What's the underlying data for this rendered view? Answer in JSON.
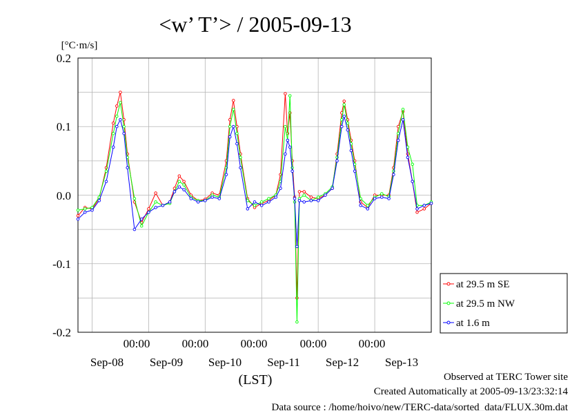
{
  "chart_data": {
    "type": "line",
    "title": "<w’ T’> / 2005-09-13",
    "ylabel": "[°C·m/s]",
    "xlabel": "(LST)",
    "ylim": [
      -0.2,
      0.2
    ],
    "y_ticks": [
      "0.2",
      "0.1",
      "0.0",
      "-0.1",
      "-0.2"
    ],
    "x_day_ticks": [
      "Sep-08",
      "Sep-09",
      "Sep-10",
      "Sep-11",
      "Sep-12",
      "Sep-13"
    ],
    "x_time_ticks": [
      "00:00",
      "00:00",
      "00:00",
      "00:00",
      "00:00"
    ],
    "x_start": "2005-09-07 18:00",
    "x_end": "2005-09-13 24:00",
    "grid": true,
    "legend_position": "lower-right outside",
    "series": [
      {
        "name": "at 29.5 m SE",
        "color": "#ff0000",
        "points": [
          [
            "2005-09-07 18:00",
            -0.03
          ],
          [
            "2005-09-07 21:00",
            -0.018
          ],
          [
            "2005-09-08 00:00",
            -0.02
          ],
          [
            "2005-09-08 03:00",
            -0.005
          ],
          [
            "2005-09-08 06:00",
            0.04
          ],
          [
            "2005-09-08 09:00",
            0.105
          ],
          [
            "2005-09-08 10:30",
            0.13
          ],
          [
            "2005-09-08 12:00",
            0.15
          ],
          [
            "2005-09-08 13:30",
            0.11
          ],
          [
            "2005-09-08 15:00",
            0.06
          ],
          [
            "2005-09-08 18:00",
            -0.01
          ],
          [
            "2005-09-08 21:00",
            -0.04
          ],
          [
            "2005-09-09 00:00",
            -0.02
          ],
          [
            "2005-09-09 03:00",
            0.003
          ],
          [
            "2005-09-09 06:00",
            -0.015
          ],
          [
            "2005-09-09 09:00",
            -0.01
          ],
          [
            "2005-09-09 11:00",
            0.01
          ],
          [
            "2005-09-09 13:00",
            0.028
          ],
          [
            "2005-09-09 15:00",
            0.02
          ],
          [
            "2005-09-09 18:00",
            0.0
          ],
          [
            "2005-09-09 21:00",
            -0.008
          ],
          [
            "2005-09-10 00:00",
            -0.006
          ],
          [
            "2005-09-10 03:00",
            0.003
          ],
          [
            "2005-09-10 06:00",
            0.0
          ],
          [
            "2005-09-10 09:00",
            0.05
          ],
          [
            "2005-09-10 10:30",
            0.11
          ],
          [
            "2005-09-10 12:00",
            0.138
          ],
          [
            "2005-09-10 13:30",
            0.1
          ],
          [
            "2005-09-10 15:00",
            0.06
          ],
          [
            "2005-09-10 18:00",
            -0.005
          ],
          [
            "2005-09-10 21:00",
            -0.018
          ],
          [
            "2005-09-11 00:00",
            -0.012
          ],
          [
            "2005-09-11 03:00",
            -0.008
          ],
          [
            "2005-09-11 06:00",
            0.0
          ],
          [
            "2005-09-11 08:00",
            0.03
          ],
          [
            "2005-09-11 10:00",
            0.148
          ],
          [
            "2005-09-11 11:00",
            0.09
          ],
          [
            "2005-09-11 12:00",
            0.12
          ],
          [
            "2005-09-11 13:00",
            0.05
          ],
          [
            "2005-09-11 14:00",
            -0.003
          ],
          [
            "2005-09-11 15:00",
            -0.15
          ],
          [
            "2005-09-11 16:00",
            0.005
          ],
          [
            "2005-09-11 18:00",
            0.005
          ],
          [
            "2005-09-11 21:00",
            -0.003
          ],
          [
            "2005-09-12 00:00",
            -0.005
          ],
          [
            "2005-09-12 03:00",
            0.0
          ],
          [
            "2005-09-12 06:00",
            0.01
          ],
          [
            "2005-09-12 08:00",
            0.06
          ],
          [
            "2005-09-12 10:00",
            0.12
          ],
          [
            "2005-09-12 11:00",
            0.137
          ],
          [
            "2005-09-12 12:30",
            0.11
          ],
          [
            "2005-09-12 14:00",
            0.08
          ],
          [
            "2005-09-12 15:30",
            0.05
          ],
          [
            "2005-09-12 18:00",
            -0.01
          ],
          [
            "2005-09-12 21:00",
            -0.018
          ],
          [
            "2005-09-13 00:00",
            0.0
          ],
          [
            "2005-09-13 03:00",
            0.0
          ],
          [
            "2005-09-13 06:00",
            0.0
          ],
          [
            "2005-09-13 08:00",
            0.04
          ],
          [
            "2005-09-13 10:00",
            0.1
          ],
          [
            "2005-09-13 12:00",
            0.122
          ],
          [
            "2005-09-13 14:00",
            0.06
          ],
          [
            "2005-09-13 16:00",
            0.02
          ],
          [
            "2005-09-13 18:00",
            -0.025
          ],
          [
            "2005-09-13 21:00",
            -0.02
          ],
          [
            "2005-09-13 24:00",
            -0.012
          ]
        ]
      },
      {
        "name": "at 29.5 m NW",
        "color": "#00ff00",
        "points": [
          [
            "2005-09-07 18:00",
            -0.022
          ],
          [
            "2005-09-07 21:00",
            -0.02
          ],
          [
            "2005-09-08 00:00",
            -0.018
          ],
          [
            "2005-09-08 03:00",
            -0.003
          ],
          [
            "2005-09-08 06:00",
            0.035
          ],
          [
            "2005-09-08 09:00",
            0.09
          ],
          [
            "2005-09-08 10:30",
            0.115
          ],
          [
            "2005-09-08 12:00",
            0.135
          ],
          [
            "2005-09-08 13:30",
            0.1
          ],
          [
            "2005-09-08 15:00",
            0.055
          ],
          [
            "2005-09-08 18:00",
            -0.005
          ],
          [
            "2005-09-08 21:00",
            -0.045
          ],
          [
            "2005-09-09 00:00",
            -0.025
          ],
          [
            "2005-09-09 03:00",
            -0.01
          ],
          [
            "2005-09-09 06:00",
            -0.015
          ],
          [
            "2005-09-09 09:00",
            -0.012
          ],
          [
            "2005-09-09 11:00",
            0.005
          ],
          [
            "2005-09-09 13:00",
            0.02
          ],
          [
            "2005-09-09 15:00",
            0.015
          ],
          [
            "2005-09-09 18:00",
            -0.003
          ],
          [
            "2005-09-09 21:00",
            -0.008
          ],
          [
            "2005-09-10 00:00",
            -0.008
          ],
          [
            "2005-09-10 03:00",
            0.0
          ],
          [
            "2005-09-10 06:00",
            -0.003
          ],
          [
            "2005-09-10 09:00",
            0.04
          ],
          [
            "2005-09-10 10:30",
            0.1
          ],
          [
            "2005-09-10 12:00",
            0.125
          ],
          [
            "2005-09-10 13:30",
            0.09
          ],
          [
            "2005-09-10 15:00",
            0.055
          ],
          [
            "2005-09-10 18:00",
            -0.008
          ],
          [
            "2005-09-10 21:00",
            -0.015
          ],
          [
            "2005-09-11 00:00",
            -0.01
          ],
          [
            "2005-09-11 03:00",
            -0.005
          ],
          [
            "2005-09-11 06:00",
            0.0
          ],
          [
            "2005-09-11 08:00",
            0.02
          ],
          [
            "2005-09-11 10:00",
            0.1
          ],
          [
            "2005-09-11 11:00",
            0.08
          ],
          [
            "2005-09-11 12:00",
            0.145
          ],
          [
            "2005-09-11 13:00",
            0.04
          ],
          [
            "2005-09-11 14:00",
            -0.01
          ],
          [
            "2005-09-11 15:00",
            -0.185
          ],
          [
            "2005-09-11 16:00",
            -0.005
          ],
          [
            "2005-09-11 18:00",
            0.0
          ],
          [
            "2005-09-11 21:00",
            -0.008
          ],
          [
            "2005-09-12 00:00",
            -0.003
          ],
          [
            "2005-09-12 03:00",
            0.002
          ],
          [
            "2005-09-12 06:00",
            0.012
          ],
          [
            "2005-09-12 08:00",
            0.055
          ],
          [
            "2005-09-12 10:00",
            0.11
          ],
          [
            "2005-09-12 11:00",
            0.132
          ],
          [
            "2005-09-12 12:30",
            0.105
          ],
          [
            "2005-09-12 14:00",
            0.075
          ],
          [
            "2005-09-12 15:30",
            0.045
          ],
          [
            "2005-09-12 18:00",
            -0.005
          ],
          [
            "2005-09-12 21:00",
            -0.015
          ],
          [
            "2005-09-13 00:00",
            -0.003
          ],
          [
            "2005-09-13 03:00",
            0.002
          ],
          [
            "2005-09-13 06:00",
            -0.002
          ],
          [
            "2005-09-13 08:00",
            0.035
          ],
          [
            "2005-09-13 10:00",
            0.09
          ],
          [
            "2005-09-13 12:00",
            0.125
          ],
          [
            "2005-09-13 14:00",
            0.07
          ],
          [
            "2005-09-13 16:00",
            0.045
          ],
          [
            "2005-09-13 18:00",
            -0.015
          ],
          [
            "2005-09-13 21:00",
            -0.015
          ],
          [
            "2005-09-13 24:00",
            -0.01
          ]
        ]
      },
      {
        "name": "at 1.6 m",
        "color": "#0000ff",
        "points": [
          [
            "2005-09-07 18:00",
            -0.035
          ],
          [
            "2005-09-07 21:00",
            -0.025
          ],
          [
            "2005-09-08 00:00",
            -0.022
          ],
          [
            "2005-09-08 03:00",
            -0.008
          ],
          [
            "2005-09-08 06:00",
            0.02
          ],
          [
            "2005-09-08 09:00",
            0.07
          ],
          [
            "2005-09-08 10:30",
            0.1
          ],
          [
            "2005-09-08 12:00",
            0.11
          ],
          [
            "2005-09-08 13:30",
            0.09
          ],
          [
            "2005-09-08 15:00",
            0.04
          ],
          [
            "2005-09-08 18:00",
            -0.05
          ],
          [
            "2005-09-08 21:00",
            -0.035
          ],
          [
            "2005-09-09 00:00",
            -0.025
          ],
          [
            "2005-09-09 03:00",
            -0.018
          ],
          [
            "2005-09-09 06:00",
            -0.015
          ],
          [
            "2005-09-09 09:00",
            -0.01
          ],
          [
            "2005-09-09 11:00",
            0.005
          ],
          [
            "2005-09-09 13:00",
            0.012
          ],
          [
            "2005-09-09 15:00",
            0.008
          ],
          [
            "2005-09-09 18:00",
            -0.005
          ],
          [
            "2005-09-09 21:00",
            -0.01
          ],
          [
            "2005-09-10 00:00",
            -0.008
          ],
          [
            "2005-09-10 03:00",
            -0.003
          ],
          [
            "2005-09-10 06:00",
            -0.005
          ],
          [
            "2005-09-10 09:00",
            0.03
          ],
          [
            "2005-09-10 10:30",
            0.085
          ],
          [
            "2005-09-10 12:00",
            0.1
          ],
          [
            "2005-09-10 13:30",
            0.075
          ],
          [
            "2005-09-10 15:00",
            0.04
          ],
          [
            "2005-09-10 18:00",
            -0.02
          ],
          [
            "2005-09-10 21:00",
            -0.01
          ],
          [
            "2005-09-11 00:00",
            -0.015
          ],
          [
            "2005-09-11 03:00",
            -0.01
          ],
          [
            "2005-09-11 06:00",
            -0.003
          ],
          [
            "2005-09-11 08:00",
            0.01
          ],
          [
            "2005-09-11 10:00",
            0.06
          ],
          [
            "2005-09-11 11:00",
            0.08
          ],
          [
            "2005-09-11 12:00",
            0.07
          ],
          [
            "2005-09-11 13:00",
            0.035
          ],
          [
            "2005-09-11 14:00",
            -0.005
          ],
          [
            "2005-09-11 15:00",
            -0.075
          ],
          [
            "2005-09-11 16:00",
            -0.008
          ],
          [
            "2005-09-11 18:00",
            -0.01
          ],
          [
            "2005-09-11 21:00",
            -0.008
          ],
          [
            "2005-09-12 00:00",
            -0.008
          ],
          [
            "2005-09-12 03:00",
            0.0
          ],
          [
            "2005-09-12 06:00",
            0.01
          ],
          [
            "2005-09-12 08:00",
            0.05
          ],
          [
            "2005-09-12 10:00",
            0.1
          ],
          [
            "2005-09-12 11:00",
            0.115
          ],
          [
            "2005-09-12 12:30",
            0.095
          ],
          [
            "2005-09-12 14:00",
            0.065
          ],
          [
            "2005-09-12 15:30",
            0.035
          ],
          [
            "2005-09-12 18:00",
            -0.015
          ],
          [
            "2005-09-12 21:00",
            -0.02
          ],
          [
            "2005-09-13 00:00",
            -0.005
          ],
          [
            "2005-09-13 03:00",
            -0.003
          ],
          [
            "2005-09-13 06:00",
            -0.005
          ],
          [
            "2005-09-13 08:00",
            0.03
          ],
          [
            "2005-09-13 10:00",
            0.08
          ],
          [
            "2005-09-13 12:00",
            0.11
          ],
          [
            "2005-09-13 14:00",
            0.055
          ],
          [
            "2005-09-13 16:00",
            0.02
          ],
          [
            "2005-09-13 18:00",
            -0.02
          ],
          [
            "2005-09-13 21:00",
            -0.015
          ],
          [
            "2005-09-13 24:00",
            -0.012
          ]
        ]
      }
    ]
  },
  "footer": {
    "line1": "Observed at TERC Tower site",
    "line2": "Created Automatically at 2005-09-13/23:32:14",
    "line3": "Data source : /home/hoivo/new/TERC-data/sorted_data/FLUX.30m.dat"
  }
}
